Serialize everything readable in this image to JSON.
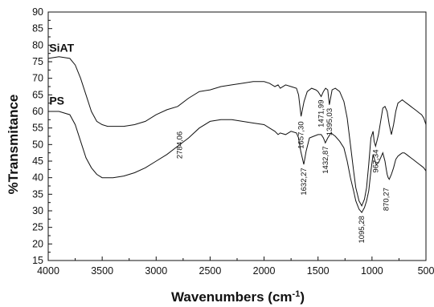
{
  "chart_data": {
    "type": "line",
    "title": "",
    "xlabel": "Wavenumbers (cm",
    "xlabel_sup": "-1",
    "xlabel_close": ")",
    "ylabel": "%Transmitance",
    "xlim": [
      4000,
      500
    ],
    "ylim": [
      15,
      90
    ],
    "xticks": [
      "4000",
      "3500",
      "3000",
      "2500",
      "2000",
      "1500",
      "1000",
      "500"
    ],
    "yticks": [
      "15",
      "20",
      "25",
      "30",
      "35",
      "40",
      "45",
      "50",
      "55",
      "60",
      "65",
      "70",
      "75",
      "80",
      "85",
      "90"
    ],
    "grid": false,
    "series": [
      {
        "name": "SiAT",
        "color": "#111111",
        "x": [
          4000,
          3900,
          3800,
          3750,
          3700,
          3650,
          3600,
          3550,
          3500,
          3450,
          3400,
          3300,
          3200,
          3100,
          3000,
          2900,
          2800,
          2700,
          2600,
          2500,
          2400,
          2300,
          2200,
          2100,
          2000,
          1950,
          1900,
          1870,
          1850,
          1800,
          1750,
          1700,
          1680,
          1657,
          1630,
          1600,
          1560,
          1520,
          1500,
          1471,
          1450,
          1430,
          1410,
          1395,
          1370,
          1340,
          1300,
          1260,
          1230,
          1200,
          1170,
          1150,
          1120,
          1095,
          1070,
          1050,
          1030,
          1010,
          990,
          980,
          967,
          955,
          940,
          920,
          900,
          880,
          860,
          840,
          820,
          800,
          780,
          760,
          740,
          720,
          700,
          680,
          660,
          640,
          620,
          600,
          580,
          560,
          540,
          520,
          500
        ],
        "y": [
          76,
          76.5,
          76,
          74,
          70,
          65,
          60,
          57,
          56,
          55.5,
          55.5,
          55.5,
          56,
          57,
          59,
          60.5,
          61.5,
          64,
          66,
          66.5,
          67.5,
          68,
          68.5,
          69,
          69,
          68.5,
          67.5,
          68,
          67,
          68,
          67.5,
          67,
          65,
          58.5,
          63,
          66,
          67,
          66.5,
          66,
          64.5,
          66,
          67,
          66.5,
          62,
          66.5,
          67,
          66,
          63,
          58,
          50,
          42,
          37,
          33,
          31.5,
          33.5,
          37,
          44,
          52,
          54,
          51,
          49.5,
          51,
          53,
          57,
          61,
          61.5,
          60,
          56,
          53,
          56,
          60,
          62.5,
          63,
          63.5,
          63,
          62.5,
          62,
          61.5,
          61,
          60.5,
          60,
          59.5,
          59,
          58,
          56
        ]
      },
      {
        "name": "PS",
        "color": "#111111",
        "x": [
          4000,
          3900,
          3800,
          3750,
          3700,
          3650,
          3600,
          3550,
          3500,
          3450,
          3400,
          3300,
          3200,
          3100,
          3000,
          2900,
          2800,
          2700,
          2600,
          2500,
          2400,
          2300,
          2200,
          2100,
          2000,
          1950,
          1900,
          1870,
          1850,
          1800,
          1750,
          1700,
          1680,
          1660,
          1632,
          1610,
          1580,
          1540,
          1500,
          1470,
          1450,
          1432,
          1410,
          1380,
          1340,
          1300,
          1260,
          1230,
          1200,
          1170,
          1150,
          1120,
          1095,
          1070,
          1050,
          1030,
          1010,
          990,
          980,
          967,
          960,
          940,
          920,
          900,
          880,
          870,
          860,
          850,
          840,
          820,
          800,
          780,
          760,
          740,
          720,
          700,
          680,
          660,
          640,
          620,
          600,
          580,
          560,
          540,
          520,
          500
        ],
        "y": [
          60,
          60,
          59,
          56,
          51,
          46,
          43,
          41,
          40,
          40,
          40,
          40.5,
          41.5,
          43,
          45,
          47,
          49.5,
          52,
          55,
          57,
          57.5,
          57.5,
          57,
          56.5,
          56,
          55,
          54,
          53,
          53.5,
          53,
          54,
          53.5,
          52,
          48,
          44,
          48,
          52,
          52.5,
          53,
          53,
          52,
          50.5,
          52,
          53.5,
          52.5,
          51,
          49,
          45,
          40,
          36,
          33,
          30.5,
          29.5,
          31,
          33,
          36,
          42,
          47,
          46,
          44.5,
          44,
          44.5,
          46,
          47.5,
          45,
          43,
          41,
          40,
          39.5,
          41,
          43,
          45.5,
          46.5,
          47,
          47.5,
          47.5,
          47,
          46.5,
          46,
          45.5,
          45,
          44.5,
          44,
          43.5,
          43,
          42
        ]
      }
    ],
    "annotations": [
      {
        "text": "2784,06",
        "x": 2784,
        "y": 54
      },
      {
        "text": "1657,30",
        "x": 1657,
        "y": 57
      },
      {
        "text": "1471,99",
        "x": 1471,
        "y": 63.5
      },
      {
        "text": "1395,03",
        "x": 1395,
        "y": 61
      },
      {
        "text": "1632,27",
        "x": 1632,
        "y": 43
      },
      {
        "text": "1432,87",
        "x": 1432,
        "y": 49.5
      },
      {
        "text": "967,34",
        "x": 967,
        "y": 48.5
      },
      {
        "text": "1095,28",
        "x": 1095,
        "y": 28.5
      },
      {
        "text": "870,27",
        "x": 870,
        "y": 37
      }
    ],
    "series_labels": [
      {
        "text": "SiAT",
        "x": 3990,
        "y": 78
      },
      {
        "text": "PS",
        "x": 3990,
        "y": 62
      }
    ]
  }
}
